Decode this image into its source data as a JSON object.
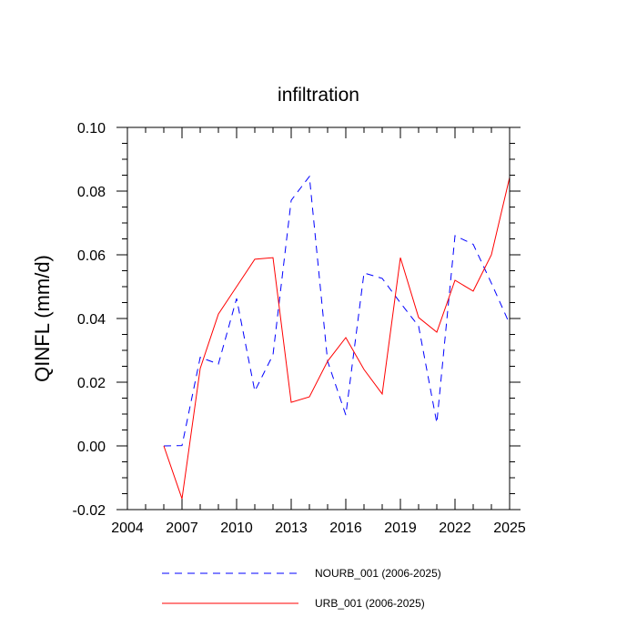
{
  "chart_data": {
    "type": "line",
    "title": "infiltration",
    "xlabel": "",
    "ylabel": "QINFL  (mm/d)",
    "xlim": [
      2004,
      2025
    ],
    "ylim": [
      -0.02,
      0.1
    ],
    "xticks": [
      2004,
      2007,
      2010,
      2013,
      2016,
      2019,
      2022,
      2025
    ],
    "xtick_labels": [
      "2004",
      "2007",
      "2010",
      "2013",
      "2016",
      "2019",
      "2022",
      "2025"
    ],
    "yticks": [
      -0.02,
      0.0,
      0.02,
      0.04,
      0.06,
      0.08,
      0.1
    ],
    "ytick_labels": [
      "-0.02",
      "0.00",
      "0.02",
      "0.04",
      "0.06",
      "0.08",
      "0.10"
    ],
    "grid": false,
    "legend_position": "bottom",
    "x": [
      2006,
      2007,
      2008,
      2009,
      2010,
      2011,
      2012,
      2013,
      2014,
      2015,
      2016,
      2017,
      2018,
      2019,
      2020,
      2021,
      2022,
      2023,
      2024,
      2025
    ],
    "series": [
      {
        "name": "NOURB_001 (2006-2025)",
        "color": "#0000ff",
        "style": "dashed",
        "values": [
          0.0,
          0.0001,
          0.0278,
          0.0257,
          0.0463,
          0.0172,
          0.0286,
          0.0771,
          0.0846,
          0.0266,
          0.0097,
          0.0543,
          0.0526,
          0.0449,
          0.0376,
          0.0072,
          0.066,
          0.0633,
          0.0511,
          0.0383
        ]
      },
      {
        "name": "URB_001 (2006-2025)",
        "color": "#ff0000",
        "style": "solid",
        "values": [
          0.0,
          -0.0166,
          0.0243,
          0.0414,
          0.05,
          0.0586,
          0.0591,
          0.0137,
          0.0154,
          0.0266,
          0.034,
          0.024,
          0.0163,
          0.0591,
          0.0403,
          0.0357,
          0.052,
          0.0486,
          0.06,
          0.0843
        ]
      }
    ]
  }
}
